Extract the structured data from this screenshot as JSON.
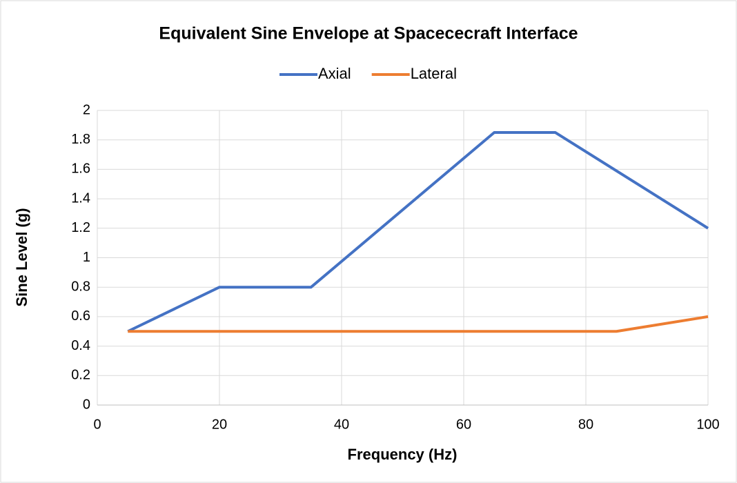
{
  "chart_data": {
    "type": "line",
    "title": "Equivalent Sine Envelope at Spacececraft Interface",
    "xlabel": "Frequency (Hz)",
    "ylabel": "Sine Level (g)",
    "series": [
      {
        "name": "Axial",
        "color": "#4472c4",
        "x": [
          5,
          20,
          35,
          65,
          75,
          100
        ],
        "values": [
          0.5,
          0.8,
          0.8,
          1.85,
          1.85,
          1.2
        ]
      },
      {
        "name": "Lateral",
        "color": "#ed7d31",
        "x": [
          5,
          85,
          100
        ],
        "values": [
          0.5,
          0.5,
          0.6
        ]
      }
    ],
    "xlim": [
      0,
      100
    ],
    "xticks": [
      0,
      20,
      40,
      60,
      80,
      100
    ],
    "ylim": [
      0,
      2
    ],
    "yticks": [
      0,
      0.2,
      0.4,
      0.6,
      0.8,
      1,
      1.2,
      1.4,
      1.6,
      1.8,
      2
    ],
    "grid": true,
    "legend": "top"
  }
}
